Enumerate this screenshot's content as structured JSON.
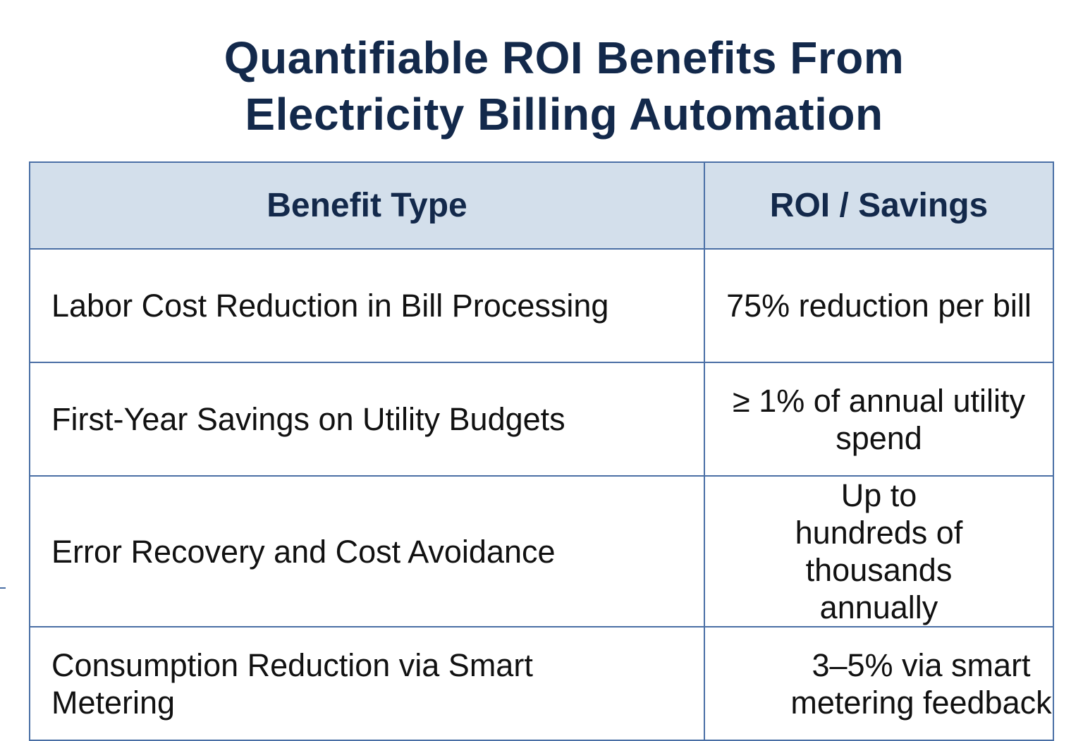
{
  "title": {
    "line1": "Quantifiable ROI Benefits From",
    "line2": "Electricity Billing Automation"
  },
  "table": {
    "headers": [
      "Benefit Type",
      "ROI / Savings"
    ],
    "rows": [
      {
        "benefit": "Labor Cost Reduction in Bill Processing",
        "roi": "75% reduction per bill"
      },
      {
        "benefit": "First-Year Savings on Utility Budgets",
        "roi": "≥ 1% of annual utility spend"
      },
      {
        "benefit": "Error Recovery and Cost Avoidance",
        "roi": "Up to hundreds of thousands annually"
      },
      {
        "benefit": "Consumption Reduction via Smart Metering",
        "roi": "3–5% via smart metering feedback"
      }
    ]
  },
  "colors": {
    "header_bg": "#d3dfeb",
    "title_text": "#13294b",
    "border": "#4a6fa5"
  }
}
